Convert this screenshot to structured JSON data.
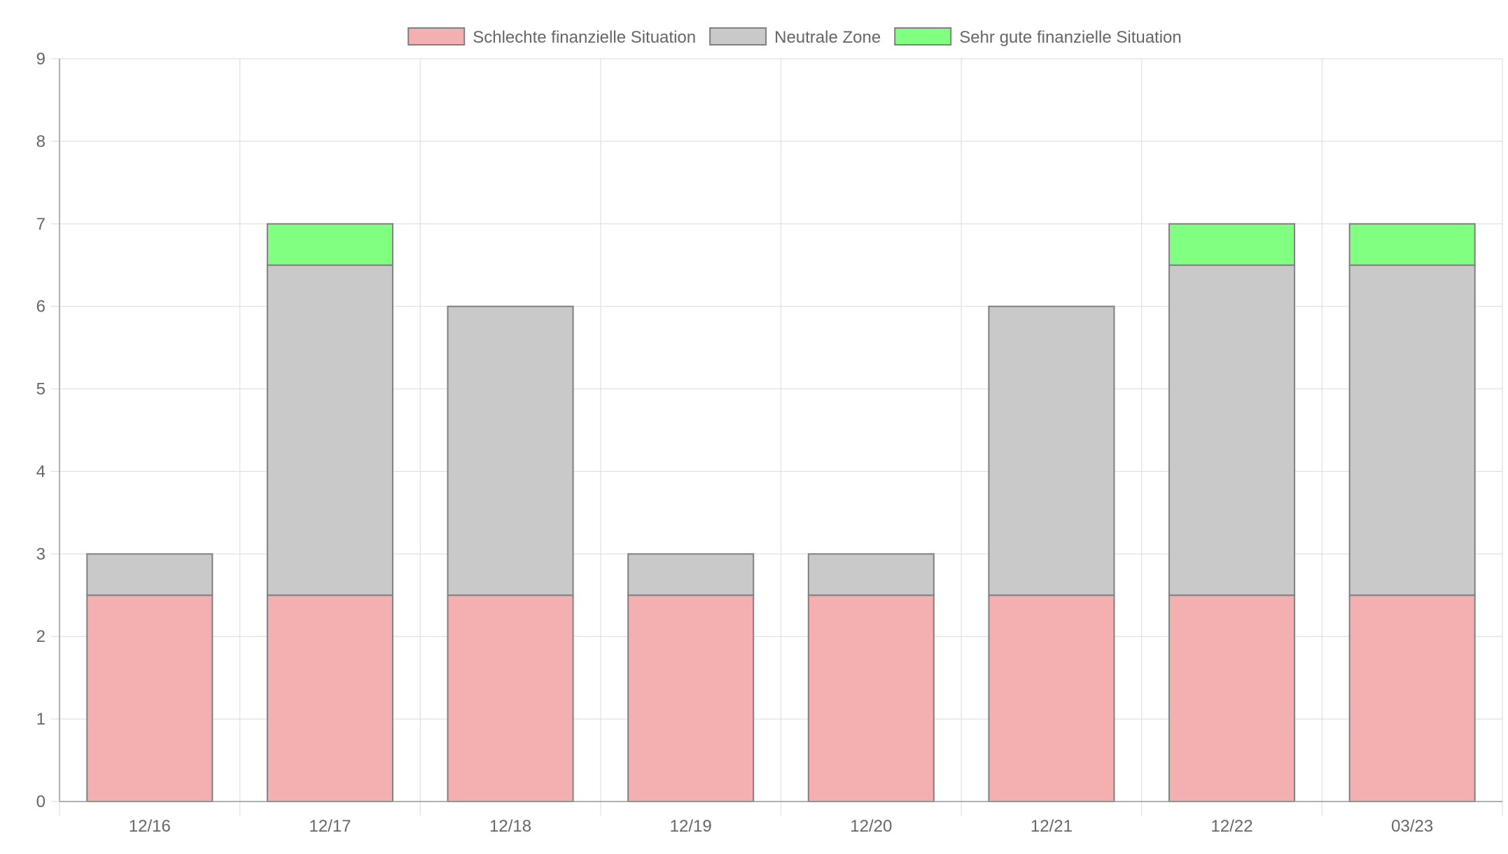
{
  "chart_data": {
    "type": "bar",
    "stacked": true,
    "categories": [
      "12/16",
      "12/17",
      "12/18",
      "12/19",
      "12/20",
      "12/21",
      "12/22",
      "03/23"
    ],
    "series": [
      {
        "name": "Schlechte finanzielle Situation",
        "color": "#f4b0b0",
        "values": [
          2.5,
          2.5,
          2.5,
          2.5,
          2.5,
          2.5,
          2.5,
          2.5
        ]
      },
      {
        "name": "Neutrale Zone",
        "color": "#c9c9c9",
        "values": [
          0.5,
          4,
          3.5,
          0.5,
          0.5,
          3.5,
          4,
          4
        ]
      },
      {
        "name": "Sehr gute finanzielle Situation",
        "color": "#80ff80",
        "values": [
          0,
          0.5,
          0,
          0,
          0,
          0,
          0.5,
          0.5
        ]
      }
    ],
    "ylim": [
      0,
      9
    ],
    "yticks": [
      0,
      1,
      2,
      3,
      4,
      5,
      6,
      7,
      8,
      9
    ],
    "legend_position": "top",
    "grid": true,
    "bar_border_color": "#808080",
    "grid_color": "#e0e0e0",
    "axis_color": "#999999",
    "text_color": "#666666"
  }
}
